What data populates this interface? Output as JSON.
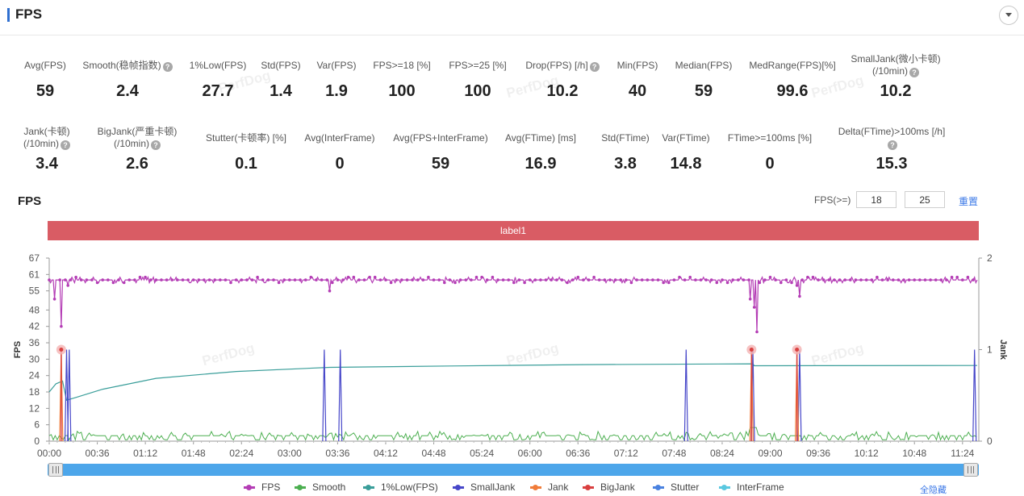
{
  "header": {
    "title": "FPS"
  },
  "metrics_row1": [
    {
      "label": "Avg(FPS)",
      "value": "59",
      "help": false
    },
    {
      "label": "Smooth(稳帧指数)",
      "value": "2.4",
      "help": true
    },
    {
      "label": "1%Low(FPS)",
      "value": "27.7",
      "help": false
    },
    {
      "label": "Std(FPS)",
      "value": "1.4",
      "help": false
    },
    {
      "label": "Var(FPS)",
      "value": "1.9",
      "help": false
    },
    {
      "label": "FPS>=18 [%]",
      "value": "100",
      "help": false
    },
    {
      "label": "FPS>=25 [%]",
      "value": "100",
      "help": false
    },
    {
      "label": "Drop(FPS) [/h]",
      "value": "10.2",
      "help": true
    },
    {
      "label": "Min(FPS)",
      "value": "40",
      "help": false
    },
    {
      "label": "Median(FPS)",
      "value": "59",
      "help": false
    },
    {
      "label": "MedRange(FPS)[%]",
      "value": "99.6",
      "help": false
    },
    {
      "label": "SmallJank(微小卡顿)",
      "label2": "(/10min)",
      "value": "10.2",
      "help": true
    }
  ],
  "metrics_row2": [
    {
      "label": "Jank(卡顿)",
      "label2": "(/10min)",
      "value": "3.4",
      "help": true
    },
    {
      "label": "BigJank(严重卡顿)",
      "label2": "(/10min)",
      "value": "2.6",
      "help": true
    },
    {
      "label": "Stutter(卡顿率) [%]",
      "value": "0.1",
      "help": false
    },
    {
      "label": "Avg(InterFrame)",
      "value": "0",
      "help": false
    },
    {
      "label": "Avg(FPS+InterFrame)",
      "value": "59",
      "help": false
    },
    {
      "label": "Avg(FTime) [ms]",
      "value": "16.9",
      "help": false
    },
    {
      "label": "Std(FTime)",
      "value": "3.8",
      "help": false
    },
    {
      "label": "Var(FTime)",
      "value": "14.8",
      "help": false
    },
    {
      "label": "FTime>=100ms [%]",
      "value": "0",
      "help": false
    },
    {
      "label": "Delta(FTime)>100ms [/h]",
      "value": "15.3",
      "help": true
    }
  ],
  "fps_section": {
    "title": "FPS",
    "threshold_label": "FPS(>=)",
    "threshold_low": "18",
    "threshold_high": "25",
    "reset_label": "重置",
    "band_label": "label1"
  },
  "watermark": "PerfDog",
  "chart_data": {
    "type": "line",
    "x_ticks": [
      "00:00",
      "00:36",
      "01:12",
      "01:48",
      "02:24",
      "03:00",
      "03:36",
      "04:12",
      "04:48",
      "05:24",
      "06:00",
      "06:36",
      "07:12",
      "07:48",
      "08:24",
      "09:00",
      "09:36",
      "10:12",
      "10:48",
      "11:24"
    ],
    "x_range_seconds": [
      0,
      695
    ],
    "y_left_ticks": [
      0,
      6,
      12,
      18,
      24,
      30,
      36,
      42,
      48,
      55,
      61,
      67
    ],
    "y_left_label": "FPS",
    "y_right_ticks": [
      0,
      1,
      2
    ],
    "y_right_label": "Jank",
    "series": [
      {
        "name": "FPS",
        "color": "#b43db5",
        "baseline": 59,
        "dips": [
          [
            4,
            52
          ],
          [
            9,
            42
          ],
          [
            14,
            57
          ],
          [
            210,
            55
          ],
          [
            525,
            52
          ],
          [
            528,
            49
          ],
          [
            530,
            40
          ],
          [
            560,
            57
          ],
          [
            562,
            53
          ]
        ]
      },
      {
        "name": "Smooth",
        "color": "#4caf50",
        "baseline": 2
      },
      {
        "name": "1%Low(FPS)",
        "color": "#3a9e9a",
        "points": [
          [
            0,
            18
          ],
          [
            5,
            21
          ],
          [
            10,
            22
          ],
          [
            13,
            15
          ],
          [
            20,
            16
          ],
          [
            40,
            19
          ],
          [
            80,
            23
          ],
          [
            140,
            25.5
          ],
          [
            210,
            27
          ],
          [
            300,
            27.5
          ],
          [
            400,
            28
          ],
          [
            527,
            28.3
          ],
          [
            528,
            27.6
          ],
          [
            695,
            27.7
          ]
        ]
      },
      {
        "name": "SmallJank",
        "color": "#4747c9",
        "spikes_seconds": [
          13,
          15,
          206,
          218,
          477,
          527,
          562,
          693
        ]
      },
      {
        "name": "Jank",
        "color": "#f07c3a",
        "spikes_seconds": [
          9,
          526,
          560
        ]
      },
      {
        "name": "BigJank",
        "color": "#d94040",
        "spikes_seconds": [
          9,
          526,
          560
        ]
      },
      {
        "name": "Stutter",
        "color": "#4a82e0"
      },
      {
        "name": "InterFrame",
        "color": "#5ac8e0"
      }
    ]
  },
  "legend": [
    {
      "name": "FPS",
      "color": "#b43db5"
    },
    {
      "name": "Smooth",
      "color": "#4caf50"
    },
    {
      "name": "1%Low(FPS)",
      "color": "#3a9e9a"
    },
    {
      "name": "SmallJank",
      "color": "#4747c9"
    },
    {
      "name": "Jank",
      "color": "#f07c3a"
    },
    {
      "name": "BigJank",
      "color": "#d94040"
    },
    {
      "name": "Stutter",
      "color": "#4a82e0"
    },
    {
      "name": "InterFrame",
      "color": "#5ac8e0"
    }
  ],
  "hide_all_label": "全隐藏"
}
